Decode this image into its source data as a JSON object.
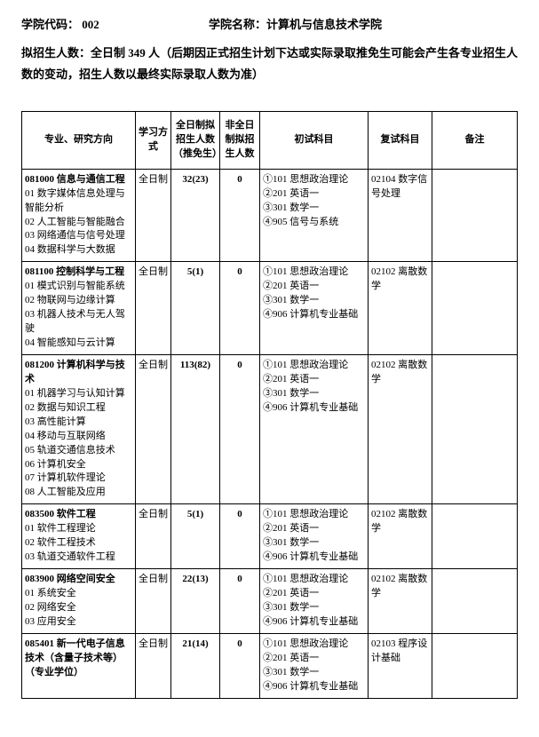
{
  "header": {
    "codeLabel": "学院代码：",
    "code": "002",
    "nameLabel": "学院名称：计算机与信息技术学院"
  },
  "description": "拟招生人数：全日制 349 人（后期因正式招生计划下达或实际录取推免生可能会产生各专业招生人数的变动，招生人数以最终实际录取人数为准）",
  "tableHeaders": {
    "major": "专业、研究方向",
    "mode": "学习方式",
    "full": "全日制拟招生人数（推免生）",
    "part": "非全日制拟招生人数",
    "exam1": "初试科目",
    "exam2": "复试科目",
    "note": "备注"
  },
  "rows": [
    {
      "majorTitle": "081000 信息与通信工程",
      "subs": [
        "01 数字媒体信息处理与智能分析",
        "02 人工智能与智能融合",
        "03 网络通信与信号处理",
        "04 数据科学与大数据"
      ],
      "mode": "全日制",
      "full": "32(23)",
      "part": "0",
      "exam1": [
        "①101 思想政治理论",
        "②201 英语一",
        "③301 数学一",
        "④905 信号与系统"
      ],
      "exam2": "02104 数字信号处理",
      "note": ""
    },
    {
      "majorTitle": "081100 控制科学与工程",
      "subs": [
        "01 模式识别与智能系统",
        "02 物联网与边缘计算",
        "03 机器人技术与无人驾驶",
        "04 智能感知与云计算"
      ],
      "mode": "全日制",
      "full": "5(1)",
      "part": "0",
      "exam1": [
        "①101 思想政治理论",
        "②201 英语一",
        "③301 数学一",
        "④906 计算机专业基础"
      ],
      "exam2": "02102 离散数学",
      "note": ""
    },
    {
      "majorTitle": "081200 计算机科学与技术",
      "subs": [
        "01 机器学习与认知计算",
        "02 数据与知识工程",
        "03 高性能计算",
        "04 移动与互联网络",
        "05 轨道交通信息技术",
        "06 计算机安全",
        "07 计算机软件理论",
        "08 人工智能及应用"
      ],
      "mode": "全日制",
      "full": "113(82)",
      "part": "0",
      "exam1": [
        "①101 思想政治理论",
        "②201 英语一",
        "③301 数学一",
        "④906 计算机专业基础"
      ],
      "exam2": "02102 离散数学",
      "note": ""
    },
    {
      "majorTitle": "083500 软件工程",
      "subs": [
        "01 软件工程理论",
        "02 软件工程技术",
        "03 轨道交通软件工程"
      ],
      "mode": "全日制",
      "full": "5(1)",
      "part": "0",
      "exam1": [
        "①101 思想政治理论",
        "②201 英语一",
        "③301 数学一",
        "④906 计算机专业基础"
      ],
      "exam2": "02102 离散数学",
      "note": ""
    },
    {
      "majorTitle": "083900 网络空间安全",
      "subs": [
        "01 系统安全",
        "02 网络安全",
        "03 应用安全"
      ],
      "mode": "全日制",
      "full": "22(13)",
      "part": "0",
      "exam1": [
        "①101 思想政治理论",
        "②201 英语一",
        "③301 数学一",
        "④906 计算机专业基础"
      ],
      "exam2": "02102 离散数学",
      "note": ""
    },
    {
      "majorTitle": "085401 新一代电子信息技术（含量子技术等）（专业学位）",
      "subs": [],
      "mode": "全日制",
      "full": "21(14)",
      "part": "0",
      "exam1": [
        "①101 思想政治理论",
        "②201 英语一",
        "③301 数学一",
        "④906 计算机专业基础"
      ],
      "exam2": "02103 程序设计基础",
      "note": ""
    }
  ]
}
